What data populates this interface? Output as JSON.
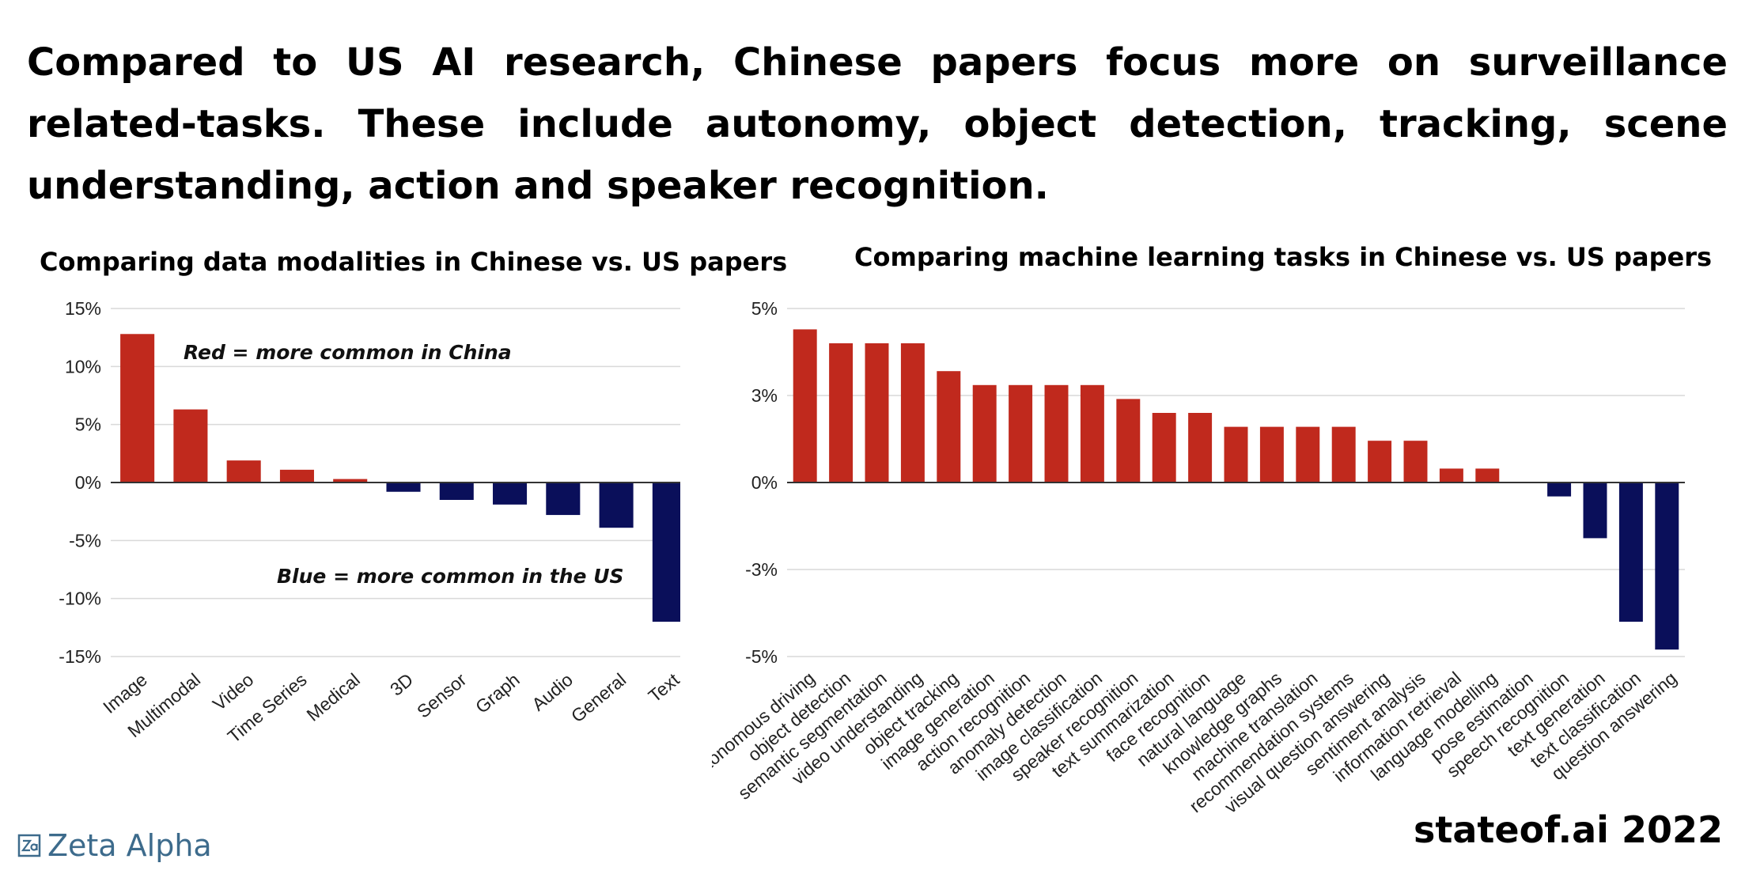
{
  "headline": "Compared to US AI research, Chinese papers focus more on surveillance related-tasks. These include autonomy, object detection, tracking, scene understanding, action and speaker recognition.",
  "source": "stateof.ai 2022",
  "logo": {
    "text": "Zeta Alpha",
    "icon": "zeta-alpha-logo-icon",
    "color": "#3d6b8c"
  },
  "colors": {
    "china": "#c0291d",
    "us": "#0a0f5a",
    "grid": "#d9d9d9",
    "axis": "#333333"
  },
  "chart_data": [
    {
      "type": "bar",
      "title": "Comparing data modalities in Chinese vs. US papers",
      "categories": [
        "Image",
        "Multimodal",
        "Video",
        "Time Series",
        "Medical",
        "3D",
        "Sensor",
        "Graph",
        "Audio",
        "General",
        "Text"
      ],
      "values": [
        12.8,
        6.3,
        1.9,
        1.1,
        0.3,
        -0.8,
        -1.5,
        -1.9,
        -2.8,
        -3.9,
        -12.0
      ],
      "ylim": [
        -15,
        15
      ],
      "yticks": [
        15,
        10,
        5,
        0,
        -5,
        -10,
        -15
      ],
      "yticklabels": [
        "15%",
        "10%",
        "5%",
        "0%",
        "-5%",
        "-10%",
        "-15%"
      ],
      "grid": true,
      "annotations": [
        "Red = more common in China",
        "Blue = more common in the US"
      ]
    },
    {
      "type": "bar",
      "title": "Comparing machine learning tasks in Chinese vs. US papers",
      "categories": [
        "autonomous driving",
        "object detection",
        "semantic segmentation",
        "video understanding",
        "object tracking",
        "image generation",
        "action recognition",
        "anomaly detection",
        "image classification",
        "speaker recognition",
        "text summarization",
        "face recognition",
        "natural language",
        "knowledge graphs",
        "machine translation",
        "recommendation systems",
        "visual question answering",
        "sentiment analysis",
        "information retrieval",
        "language modelling",
        "pose estimation",
        "speech recognition",
        "text generation",
        "text classification",
        "question answering"
      ],
      "values": [
        4.4,
        4.0,
        4.0,
        4.0,
        3.2,
        2.8,
        2.8,
        2.8,
        2.8,
        2.4,
        2.0,
        2.0,
        1.6,
        1.6,
        1.6,
        1.6,
        1.2,
        1.2,
        0.4,
        0.4,
        0.0,
        -0.4,
        -1.6,
        -4.0,
        -4.8
      ],
      "ylim": [
        -5,
        5
      ],
      "yticks": [
        5,
        2.5,
        0,
        -2.5,
        -5
      ],
      "yticklabels": [
        "5%",
        "3%",
        "0%",
        "-3%",
        "-5%"
      ],
      "grid": true
    }
  ]
}
